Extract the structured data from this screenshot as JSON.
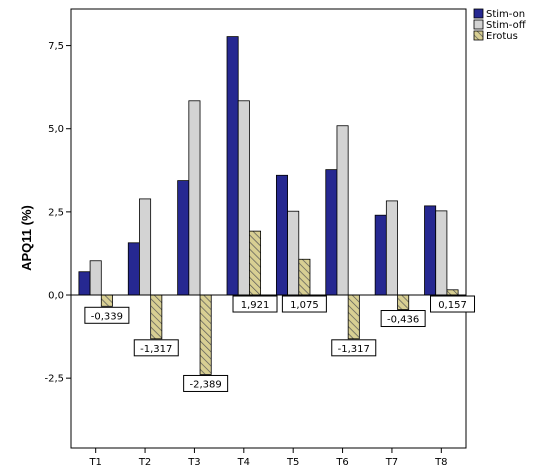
{
  "chart_data": {
    "type": "bar",
    "categories": [
      "T1",
      "T2",
      "T3",
      "T4",
      "T5",
      "T6",
      "T7",
      "T8"
    ],
    "ylabel": "APQ11 (%)",
    "ylim": [
      -4.6,
      8.6
    ],
    "yticks": [
      -2.5,
      0,
      2.5,
      5,
      7.5
    ],
    "ytick_labels": [
      "-2,5",
      "0,0",
      "2,5",
      "5,0",
      "7,5"
    ],
    "grid": false,
    "legend_position": "top-right",
    "series": [
      {
        "name": "Stim-on",
        "color": "#262891",
        "values": [
          0.7,
          1.57,
          3.44,
          7.77,
          3.6,
          3.77,
          2.4,
          2.68
        ]
      },
      {
        "name": "Stim-off",
        "color": "#d3d3d3",
        "values": [
          1.03,
          2.89,
          5.84,
          5.84,
          2.52,
          5.09,
          2.83,
          2.53
        ]
      },
      {
        "name": "Erotus",
        "color": "#d8cf93",
        "pattern": "hatch",
        "values": [
          -0.339,
          -1.317,
          -2.389,
          1.921,
          1.075,
          -1.317,
          -0.436,
          0.157
        ]
      }
    ],
    "data_labels": [
      "-0,339",
      "-1,317",
      "-2,389",
      "1,921",
      "1,075",
      "-1,317",
      "-0,436",
      "0,157"
    ]
  }
}
